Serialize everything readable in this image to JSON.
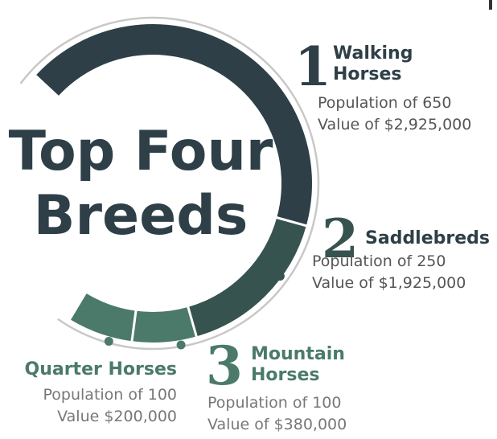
{
  "chart_data": {
    "type": "arc",
    "title": [
      "Top Four",
      "Breeds"
    ],
    "categories": [
      "Walking Horses",
      "Saddlebreds",
      "Mountain Horses",
      "Quarter Horses"
    ],
    "ranks": [
      "1",
      "2",
      "3",
      null
    ],
    "values": [
      650,
      250,
      100,
      100
    ],
    "value_labels": [
      "Population of 650",
      "Population of 250",
      "Population of 100",
      "Population of 100"
    ],
    "worth_labels": [
      "Value of $2,925,000",
      "Value of $1,925,000",
      "Value of $380,000",
      "Value $200,000"
    ],
    "colors": [
      "#2e3f47",
      "#37534f",
      "#4b7a6a",
      "#4b7a6a"
    ]
  }
}
